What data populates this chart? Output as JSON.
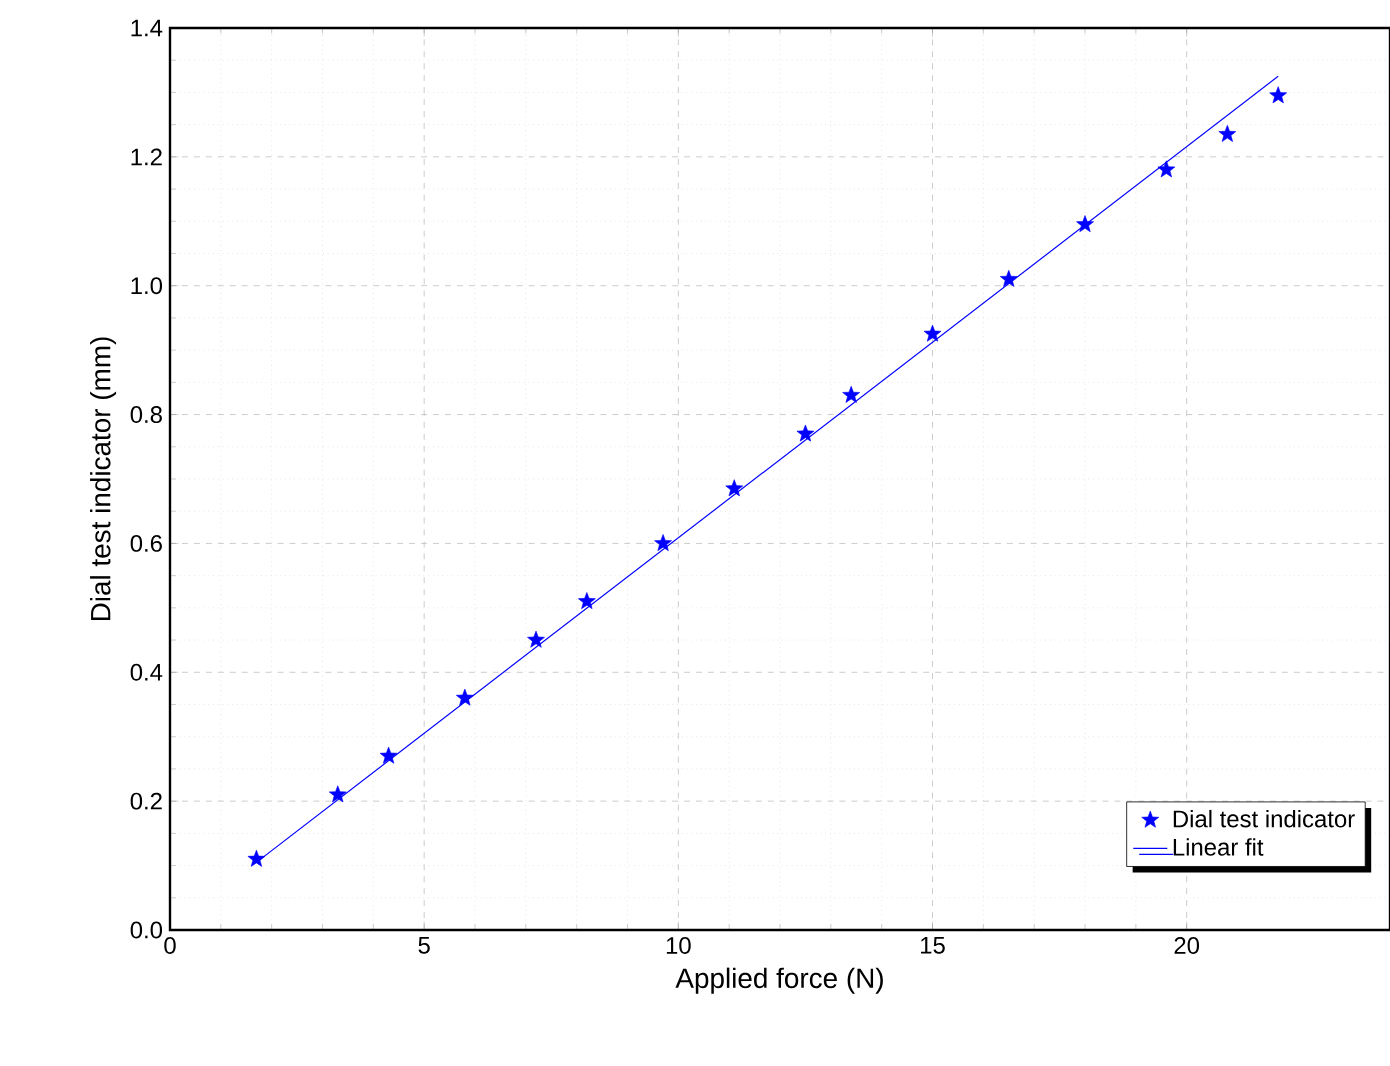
{
  "chart_data": {
    "type": "scatter",
    "xlabel": "Applied force (N)",
    "ylabel": "Dial test indicator (mm)",
    "xlim": [
      0,
      24
    ],
    "ylim": [
      0,
      1.4
    ],
    "xticks": [
      0,
      5,
      10,
      15,
      20
    ],
    "yticks": [
      {
        "value": 0,
        "label": "0.0"
      },
      {
        "value": 0.2,
        "label": "0.2"
      },
      {
        "value": 0.4,
        "label": "0.4"
      },
      {
        "value": 0.6,
        "label": "0.6"
      },
      {
        "value": 0.8,
        "label": "0.8"
      },
      {
        "value": 1.0,
        "label": "1.0"
      },
      {
        "value": 1.2,
        "label": "1.2"
      },
      {
        "value": 1.4,
        "label": "1.4"
      }
    ],
    "grid": true,
    "legend": "bottom right",
    "series": [
      {
        "name": "Dial test indicator",
        "marker": "star",
        "color": "#0000ff",
        "x": [
          1.7,
          3.3,
          4.3,
          5.8,
          7.2,
          8.2,
          9.7,
          11.1,
          12.5,
          13.4,
          15.0,
          16.5,
          18.0,
          19.6,
          20.8,
          21.8
        ],
        "values": [
          0.11,
          0.21,
          0.27,
          0.36,
          0.45,
          0.51,
          0.6,
          0.685,
          0.77,
          0.83,
          0.925,
          1.01,
          1.095,
          1.18,
          1.235,
          1.295
        ]
      },
      {
        "name": "Linear fit",
        "type": "line",
        "marker": "none",
        "line_style": "solid",
        "color": "#0000ff",
        "x": [
          1.7,
          21.8
        ],
        "values": [
          0.105,
          1.325
        ]
      }
    ]
  }
}
